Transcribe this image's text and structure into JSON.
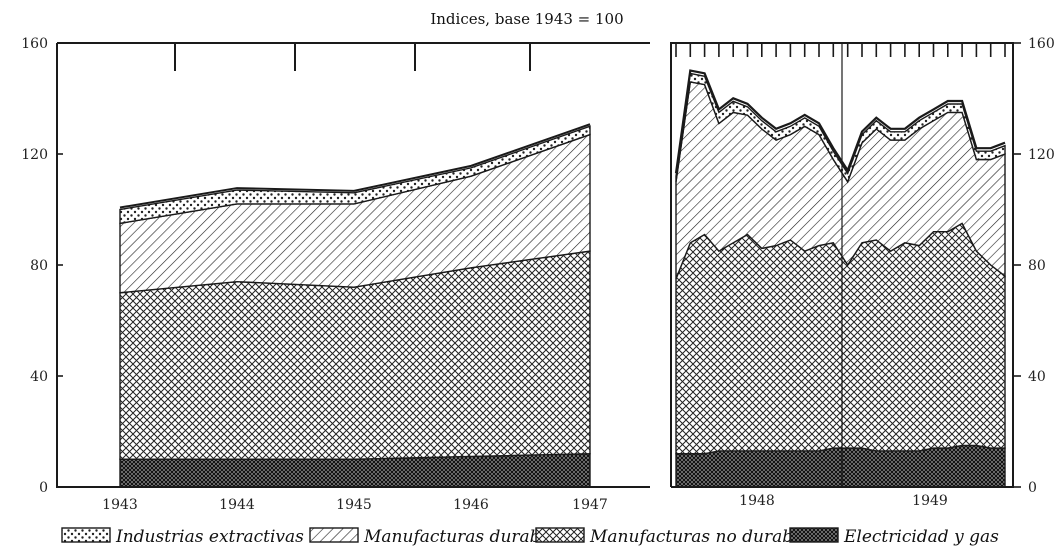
{
  "chart_data": {
    "type": "area",
    "stacked": true,
    "title": "Indices, base 1943 = 100",
    "ylim": [
      0,
      160
    ],
    "yticks": [
      "0",
      "40",
      "80",
      "120",
      "160"
    ],
    "grid": false,
    "legend_position": "bottom",
    "panels": [
      {
        "name": "annual",
        "x_labels": [
          "1943",
          "1944",
          "1945",
          "1946",
          "1947"
        ],
        "series": [
          {
            "name": "Electricidad y gas",
            "pattern": "dense-crosshatch",
            "values": [
              10,
              10,
              10,
              11,
              12
            ]
          },
          {
            "name": "Manufacturas no durables",
            "pattern": "crosshatch",
            "values": [
              60,
              64,
              62,
              68,
              73
            ]
          },
          {
            "name": "Manufacturas durables",
            "pattern": "diagonal",
            "values": [
              25,
              28,
              30,
              33,
              42
            ]
          },
          {
            "name": "Industrias extractivas",
            "pattern": "dotted",
            "values": [
              5,
              5,
              4,
              3,
              3
            ]
          }
        ]
      },
      {
        "name": "monthly",
        "x_labels": [
          "1948",
          "1949"
        ],
        "months": 24,
        "series": [
          {
            "name": "Electricidad y gas",
            "values": [
              12,
              12,
              12,
              13,
              13,
              13,
              13,
              13,
              13,
              13,
              13,
              14,
              14,
              14,
              13,
              13,
              13,
              13,
              14,
              14,
              15,
              15,
              14,
              14
            ]
          },
          {
            "name": "Manufacturas no durables",
            "values": [
              63,
              76,
              79,
              72,
              75,
              78,
              73,
              74,
              76,
              72,
              74,
              74,
              66,
              74,
              76,
              72,
              75,
              74,
              78,
              78,
              80,
              70,
              66,
              62
            ]
          },
          {
            "name": "Manufacturas durables",
            "values": [
              35,
              58,
              54,
              46,
              47,
              43,
              43,
              38,
              38,
              45,
              40,
              30,
              30,
              36,
              40,
              40,
              37,
              42,
              40,
              43,
              40,
              33,
              38,
              44
            ]
          },
          {
            "name": "Industrias extractivas",
            "values": [
              2,
              3,
              3,
              4,
              4,
              3,
              3,
              3,
              3,
              3,
              3,
              3,
              3,
              3,
              3,
              3,
              3,
              3,
              3,
              3,
              3,
              3,
              3,
              3
            ]
          }
        ]
      }
    ]
  },
  "colors": {
    "ink": "#1a1a1a",
    "paper": "#ffffff"
  }
}
